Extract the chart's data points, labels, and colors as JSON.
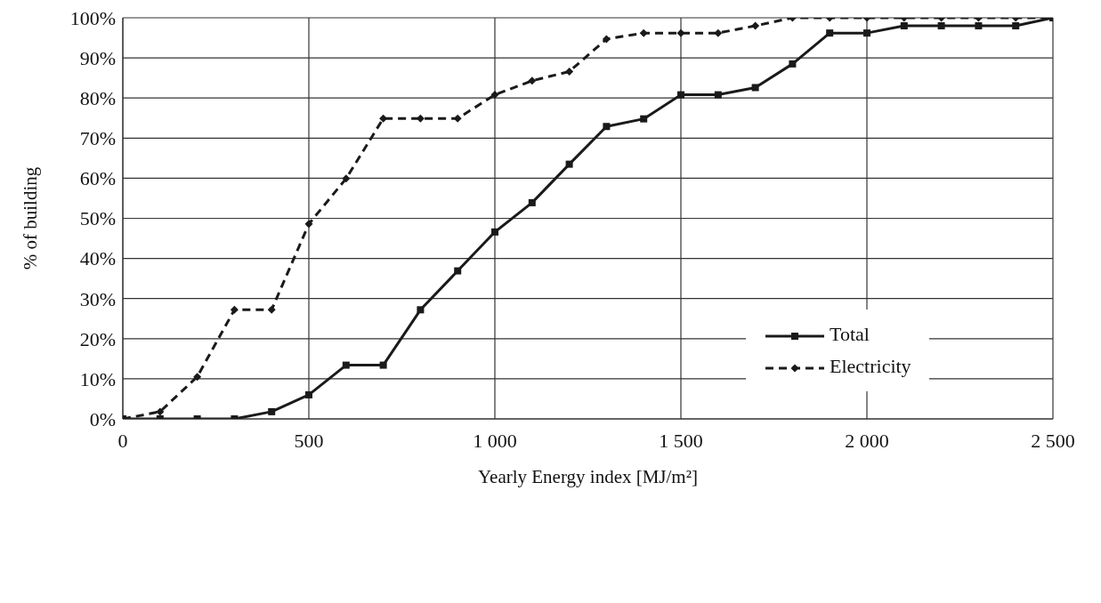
{
  "chart_data": {
    "type": "line",
    "xlabel": "Yearly Energy index [MJ/m²]",
    "ylabel": "% of building",
    "x": [
      0,
      100,
      200,
      300,
      400,
      500,
      600,
      700,
      800,
      900,
      1000,
      1100,
      1200,
      1300,
      1400,
      1500,
      1600,
      1700,
      1800,
      1900,
      2000,
      2100,
      2200,
      2300,
      2400,
      2500
    ],
    "series": [
      {
        "name": "Total",
        "color": "#1a1a1a",
        "marker": "square",
        "line_style": "solid",
        "values": [
          0,
          0,
          0,
          0,
          1.8,
          6,
          13.4,
          13.4,
          27.2,
          36.9,
          46.6,
          53.9,
          63.5,
          72.9,
          74.8,
          80.8,
          80.8,
          82.6,
          88.5,
          96.2,
          96.2,
          98,
          98,
          98,
          98,
          100
        ]
      },
      {
        "name": "Electricity",
        "color": "#1a1a1a",
        "marker": "diamond",
        "line_style": "dashed",
        "values": [
          0,
          1.8,
          10.5,
          27.2,
          27.2,
          48.6,
          59.9,
          74.9,
          74.9,
          74.9,
          80.8,
          84.3,
          86.6,
          94.7,
          96.2,
          96.2,
          96.2,
          98,
          100,
          100,
          100,
          100,
          100,
          100,
          100,
          100
        ]
      }
    ],
    "xlim": [
      0,
      2500
    ],
    "xticks": [
      {
        "value": 0,
        "label": "0"
      },
      {
        "value": 500,
        "label": "500"
      },
      {
        "value": 1000,
        "label": "1 000"
      },
      {
        "value": 1500,
        "label": "1 500"
      },
      {
        "value": 2000,
        "label": "2 000"
      },
      {
        "value": 2500,
        "label": "2 500"
      }
    ],
    "ylim": [
      0,
      100
    ],
    "yticks": [
      {
        "value": 0,
        "label": "0%"
      },
      {
        "value": 10,
        "label": "10%"
      },
      {
        "value": 20,
        "label": "20%"
      },
      {
        "value": 30,
        "label": "30%"
      },
      {
        "value": 40,
        "label": "40%"
      },
      {
        "value": 50,
        "label": "50%"
      },
      {
        "value": 60,
        "label": "60%"
      },
      {
        "value": 70,
        "label": "70%"
      },
      {
        "value": 80,
        "label": "80%"
      },
      {
        "value": 90,
        "label": "90%"
      },
      {
        "value": 100,
        "label": "100%"
      }
    ],
    "grid": true,
    "legend": "right"
  }
}
